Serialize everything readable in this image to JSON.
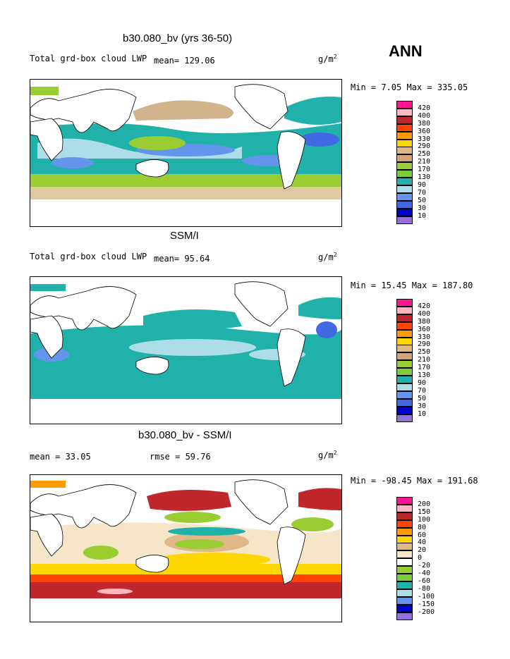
{
  "season": "ANN",
  "units_base": "g/m",
  "units_exp": "2",
  "panels": [
    {
      "id": "model",
      "title": "b30.080_bv (yrs 36-50)",
      "left_text": "Total grd-box cloud LWP",
      "mean_text": "mean=  129.06",
      "minmax_text": "Min =    7.05 Max = 335.05",
      "legend_levels": [
        "420",
        "400",
        "380",
        "360",
        "330",
        "290",
        "250",
        "210",
        "170",
        "130",
        "90",
        "70",
        "50",
        "30",
        "10"
      ],
      "legend_colors": [
        "#ff1493",
        "#ffb6c1",
        "#c0272d",
        "#ff4500",
        "#ff9a00",
        "#ffd700",
        "#e0b888",
        "#d2a57a",
        "#9acd32",
        "#7ccd3a",
        "#20b2aa",
        "#aeddea",
        "#6495ed",
        "#4169e1",
        "#0000cd",
        "#9370db"
      ]
    },
    {
      "id": "obs",
      "title": "SSM/I",
      "left_text": "Total grd-box cloud LWP",
      "mean_text": "mean=   95.64",
      "minmax_text": "Min =   15.45 Max = 187.80",
      "legend_levels": [
        "420",
        "400",
        "380",
        "360",
        "330",
        "290",
        "250",
        "210",
        "170",
        "130",
        "90",
        "70",
        "50",
        "30",
        "10"
      ],
      "legend_colors": [
        "#ff1493",
        "#ffb6c1",
        "#c0272d",
        "#ff4500",
        "#ff9a00",
        "#ffd700",
        "#e0b888",
        "#d2a57a",
        "#9acd32",
        "#7ccd3a",
        "#20b2aa",
        "#aeddea",
        "#6495ed",
        "#4169e1",
        "#0000cd",
        "#9370db"
      ]
    },
    {
      "id": "diff",
      "title": "b30.080_bv - SSM/I",
      "left_text": "mean =   33.05",
      "mean_text": "rmse =   59.76",
      "minmax_text": "Min = -98.45 Max = 191.68",
      "legend_levels": [
        "200",
        "150",
        "100",
        "80",
        "60",
        "40",
        "20",
        "0",
        "-20",
        "-40",
        "-60",
        "-80",
        "-100",
        "-150",
        "-200"
      ],
      "legend_colors": [
        "#ff1493",
        "#ffb6c1",
        "#c0272d",
        "#ff4500",
        "#ff9a00",
        "#ffd700",
        "#e0b888",
        "#f5e6c8",
        "#ffffff",
        "#9acd32",
        "#7ccd3a",
        "#20b2aa",
        "#aeddea",
        "#6495ed",
        "#0000cd",
        "#9370db"
      ]
    }
  ]
}
